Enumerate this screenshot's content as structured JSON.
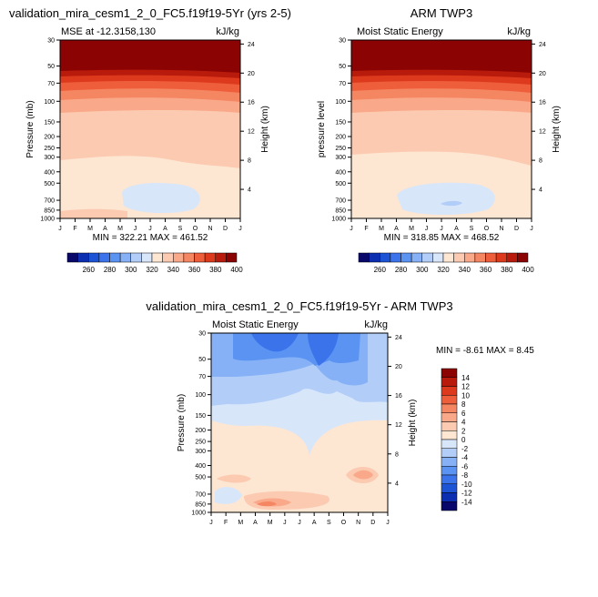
{
  "chart_data": [
    {
      "type": "heatmap",
      "title": "validation_mira_cesm1_2_0_FC5.f19f19-5Yr (yrs 2-5)",
      "subtitle_left": "MSE at -12.3158,130",
      "subtitle_right": "kJ/kg",
      "ylabel": "Pressure (mb)",
      "ylabel_right": "Height (km)",
      "x_ticks": [
        "J",
        "F",
        "M",
        "A",
        "M",
        "J",
        "J",
        "A",
        "S",
        "O",
        "N",
        "D",
        "J"
      ],
      "y_ticks": [
        30,
        50,
        70,
        100,
        150,
        200,
        250,
        300,
        400,
        500,
        700,
        850,
        1000
      ],
      "height_ticks": [
        24,
        20,
        16,
        12,
        8,
        4
      ],
      "ylim": [
        30,
        1000
      ],
      "stats": "MIN = 322.21   MAX = 461.52",
      "colorbar_labels": [
        "260",
        "280",
        "300",
        "320",
        "340",
        "360",
        "380",
        "400"
      ]
    },
    {
      "type": "heatmap",
      "title": "ARM TWP3",
      "subtitle_left": "Moist Static Energy",
      "subtitle_right": "kJ/kg",
      "ylabel": "pressure level",
      "ylabel_right": "Height (km)",
      "x_ticks": [
        "J",
        "F",
        "M",
        "A",
        "M",
        "J",
        "J",
        "A",
        "S",
        "O",
        "N",
        "D",
        "J"
      ],
      "y_ticks": [
        30,
        50,
        70,
        100,
        150,
        200,
        250,
        300,
        400,
        500,
        700,
        850,
        1000
      ],
      "height_ticks": [
        24,
        20,
        16,
        12,
        8,
        4
      ],
      "ylim": [
        30,
        1000
      ],
      "stats": "MIN = 318.85   MAX = 468.52",
      "colorbar_labels": [
        "260",
        "280",
        "300",
        "320",
        "340",
        "360",
        "380",
        "400"
      ]
    },
    {
      "type": "heatmap",
      "title": "validation_mira_cesm1_2_0_FC5.f19f19-5Yr - ARM TWP3",
      "subtitle_left": "Moist Static Energy",
      "subtitle_right": "kJ/kg",
      "ylabel": "Pressure (mb)",
      "ylabel_right": "Height (km)",
      "x_ticks": [
        "J",
        "F",
        "M",
        "A",
        "M",
        "J",
        "J",
        "A",
        "S",
        "O",
        "N",
        "D",
        "J"
      ],
      "y_ticks": [
        30,
        50,
        70,
        100,
        150,
        200,
        250,
        300,
        400,
        500,
        700,
        850,
        1000
      ],
      "height_ticks": [
        24,
        20,
        16,
        12,
        8,
        4
      ],
      "ylim": [
        30,
        1000
      ],
      "stats": "MIN =  -8.61   MAX =   8.45",
      "colorbar_labels": [
        "14",
        "12",
        "10",
        "8",
        "6",
        "4",
        "2",
        "0",
        "-2",
        "-4",
        "-6",
        "-8",
        "-10",
        "-12",
        "-14"
      ]
    }
  ],
  "colors": {
    "seq": [
      "#08086b",
      "#0b2fb0",
      "#1d54d6",
      "#3a73ea",
      "#5b93f2",
      "#86b1f6",
      "#b2cef8",
      "#d8e6fa",
      "#fde6d2",
      "#fccab0",
      "#f9a98a",
      "#f58662",
      "#ee5e3a",
      "#dd3a1d",
      "#b81a0b",
      "#8b0303"
    ],
    "div": [
      "#8b0303",
      "#b81a0b",
      "#dd3a1d",
      "#ee5e3a",
      "#f58662",
      "#f9a98a",
      "#fccab0",
      "#fde6d2",
      "#d8e6fa",
      "#b2cef8",
      "#86b1f6",
      "#5b93f2",
      "#3a73ea",
      "#1d54d6",
      "#0b2fb0",
      "#08086b"
    ]
  }
}
